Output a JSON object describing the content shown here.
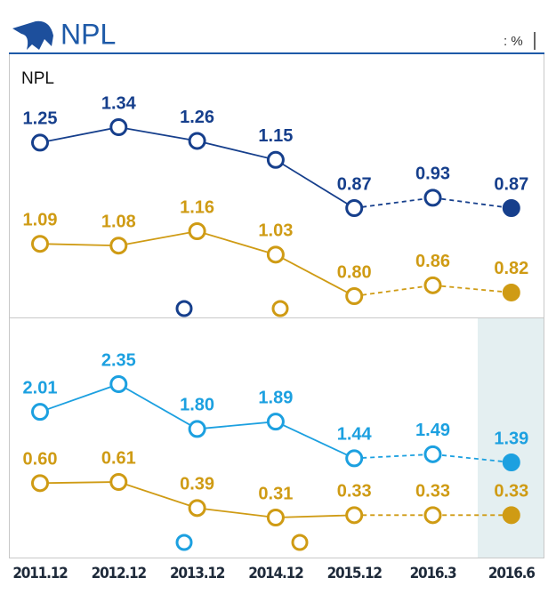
{
  "title": "NPL",
  "unit": ": %",
  "chart_data": [
    {
      "type": "line",
      "subtitle": "NPL",
      "series": [
        {
          "color": "#163f8c",
          "values": [
            1.25,
            1.34,
            1.26,
            1.15,
            0.87,
            0.93,
            0.87
          ]
        },
        {
          "color": "#cf9b14",
          "values": [
            1.09,
            1.08,
            1.16,
            1.03,
            0.8,
            0.86,
            0.82
          ],
          "value_labels": [
            "1.09",
            "1.08",
            "1.16",
            "1.03",
            "0.80",
            "0.86",
            "0.82"
          ]
        }
      ]
    },
    {
      "type": "line",
      "categories": [
        "2011.12",
        "2012.12",
        "2013.12",
        "2014.12",
        "2015.12",
        "2016.3",
        "2016.6"
      ],
      "series": [
        {
          "color": "#1ca0e0",
          "values": [
            2.01,
            2.35,
            1.8,
            1.89,
            1.44,
            1.49,
            1.39
          ],
          "value_labels": [
            "2.01",
            "2.35",
            "1.80",
            "1.89",
            "1.44",
            "1.49",
            "1.39"
          ]
        },
        {
          "color": "#cf9b14",
          "values": [
            0.6,
            0.61,
            0.39,
            0.31,
            0.33,
            0.33,
            0.33
          ],
          "value_labels": [
            "0.60",
            "0.61",
            "0.39",
            "0.31",
            "0.33",
            "0.33",
            "0.33"
          ]
        }
      ]
    }
  ]
}
